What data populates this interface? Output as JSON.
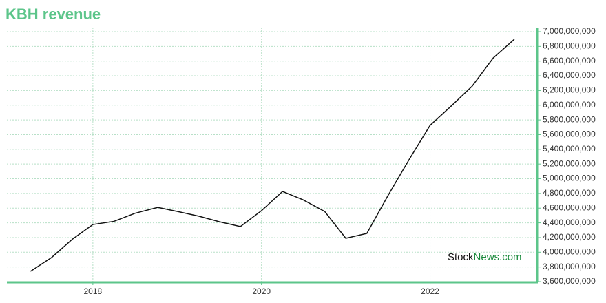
{
  "chart_data": {
    "type": "line",
    "title": "KBH revenue",
    "x": [
      2017.26,
      2017.51,
      2017.76,
      2018.0,
      2018.25,
      2018.5,
      2018.77,
      2019.0,
      2019.26,
      2019.5,
      2019.75,
      2020.0,
      2020.25,
      2020.49,
      2020.75,
      2021.0,
      2021.25,
      2021.5,
      2021.75,
      2022.0,
      2022.25,
      2022.5,
      2022.75,
      2023.0
    ],
    "series": [
      {
        "color": "#111111",
        "values": [
          3740000000,
          3928000000,
          4180000000,
          4377000000,
          4420000000,
          4530000000,
          4610000000,
          4555000000,
          4490000000,
          4415000000,
          4350000000,
          4565000000,
          4827000000,
          4715000000,
          4555000000,
          4190000000,
          4256000000,
          4770000000,
          5258000000,
          5726000000,
          5988000000,
          6260000000,
          6644000000,
          6897000000
        ]
      }
    ],
    "xlim": [
      2016.98,
      2023.27
    ],
    "xticks": [
      2018,
      2020,
      2022
    ],
    "ylim": [
      3600000000,
      7000000000
    ],
    "yticks": [
      {
        "value": 3600000000,
        "label": "3,600,000,000"
      },
      {
        "value": 3800000000,
        "label": "3,800,000,000"
      },
      {
        "value": 4000000000,
        "label": "4,000,000,000"
      },
      {
        "value": 4200000000,
        "label": "4,200,000,000"
      },
      {
        "value": 4400000000,
        "label": "4,400,000,000"
      },
      {
        "value": 4600000000,
        "label": "4,600,000,000"
      },
      {
        "value": 4800000000,
        "label": "4,800,000,000"
      },
      {
        "value": 5000000000,
        "label": "5,000,000,000"
      },
      {
        "value": 5200000000,
        "label": "5,200,000,000"
      },
      {
        "value": 5400000000,
        "label": "5,400,000,000"
      },
      {
        "value": 5600000000,
        "label": "5,600,000,000"
      },
      {
        "value": 5800000000,
        "label": "5,800,000,000"
      },
      {
        "value": 6000000000,
        "label": "6,000,000,000"
      },
      {
        "value": 6200000000,
        "label": "6,200,000,000"
      },
      {
        "value": 6400000000,
        "label": "6,400,000,000"
      },
      {
        "value": 6600000000,
        "label": "6,600,000,000"
      },
      {
        "value": 6800000000,
        "label": "6,800,000,000"
      },
      {
        "value": 7000000000,
        "label": "7,000,000,000"
      }
    ],
    "grid": true,
    "axis_color": "#5cc58a",
    "watermark": [
      "Stock",
      "News.com"
    ]
  }
}
